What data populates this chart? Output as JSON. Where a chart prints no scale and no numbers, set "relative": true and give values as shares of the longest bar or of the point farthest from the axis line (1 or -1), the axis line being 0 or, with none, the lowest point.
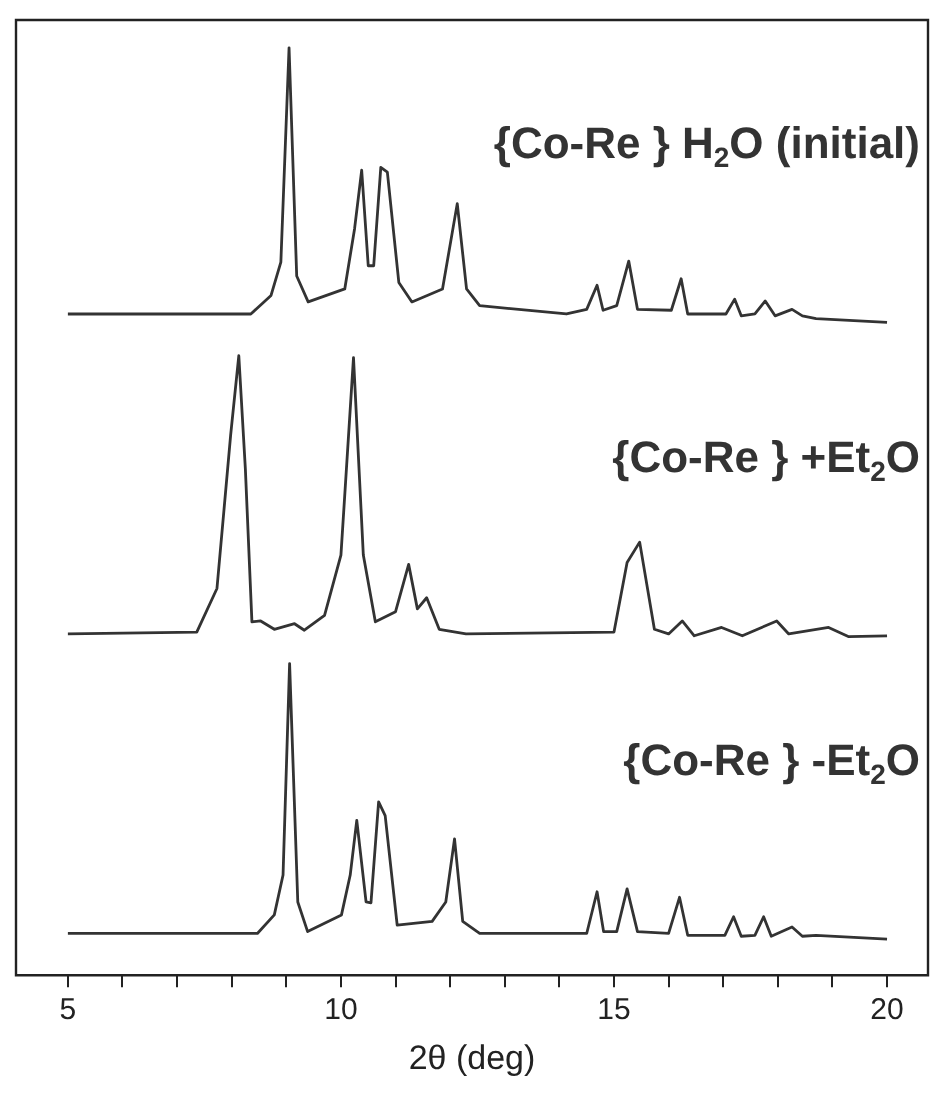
{
  "chart_data": {
    "type": "line",
    "relative": true,
    "xlabel": "2θ (deg)",
    "xlim": [
      4.05,
      20.75
    ],
    "xticks": [
      5,
      {
        "value": 6,
        "label": null
      },
      {
        "value": 7,
        "label": null
      },
      {
        "value": 8,
        "label": null
      },
      {
        "value": 9,
        "label": null
      },
      10,
      {
        "value": 11,
        "label": null
      },
      {
        "value": 12,
        "label": null
      },
      {
        "value": 13,
        "label": null
      },
      {
        "value": 14,
        "label": null
      },
      15,
      {
        "value": 16,
        "label": null
      },
      {
        "value": 17,
        "label": null
      },
      {
        "value": 18,
        "label": null
      },
      {
        "value": 19,
        "label": null
      },
      20
    ],
    "grid": false,
    "legend": false,
    "marker": "none",
    "line_style": "solid",
    "series": [
      {
        "name": "{Co-Re } H$_{2}$O (initial)",
        "color": "#333333",
        "x": [
          5,
          8.35,
          8.72,
          8.9,
          9.05,
          9.19,
          9.4,
          10.07,
          10.25,
          10.38,
          10.5,
          10.6,
          10.73,
          10.85,
          11.06,
          11.3,
          11.86,
          12.13,
          12.3,
          12.54,
          14.13,
          14.5,
          14.69,
          14.8,
          15.05,
          15.27,
          15.43,
          16.05,
          16.23,
          16.35,
          17.05,
          17.21,
          17.33,
          17.58,
          17.77,
          17.95,
          18.26,
          18.45,
          18.7,
          20
        ],
        "values": [
          0.713,
          0.713,
          0.733,
          0.769,
          1.0,
          0.754,
          0.726,
          0.74,
          0.805,
          0.868,
          0.765,
          0.765,
          0.871,
          0.866,
          0.747,
          0.726,
          0.74,
          0.832,
          0.74,
          0.722,
          0.713,
          0.718,
          0.744,
          0.717,
          0.722,
          0.77,
          0.718,
          0.717,
          0.751,
          0.713,
          0.713,
          0.729,
          0.711,
          0.713,
          0.727,
          0.711,
          0.718,
          0.711,
          0.708,
          0.704
        ]
      },
      {
        "name": "{Co-Re } +Et$_{2}$O",
        "color": "#333333",
        "x": [
          5,
          7.36,
          7.73,
          7.98,
          8.13,
          8.25,
          8.37,
          8.53,
          8.78,
          9.15,
          9.33,
          9.7,
          10.0,
          10.23,
          10.41,
          10.63,
          11.0,
          11.24,
          11.4,
          11.57,
          11.8,
          12.29,
          15.0,
          15.24,
          15.47,
          15.74,
          16.0,
          16.25,
          16.47,
          16.97,
          17.35,
          17.98,
          18.2,
          18.93,
          19.3,
          20
        ],
        "values": [
          0.368,
          0.37,
          0.417,
          0.582,
          0.668,
          0.546,
          0.381,
          0.382,
          0.373,
          0.379,
          0.372,
          0.388,
          0.453,
          0.666,
          0.453,
          0.381,
          0.392,
          0.443,
          0.395,
          0.407,
          0.373,
          0.368,
          0.37,
          0.445,
          0.467,
          0.373,
          0.368,
          0.382,
          0.366,
          0.375,
          0.366,
          0.382,
          0.368,
          0.375,
          0.365,
          0.366
        ]
      },
      {
        "name": "{Co-Re } -Et$_{2}$O",
        "color": "#333333",
        "x": [
          5,
          8.47,
          8.78,
          8.94,
          9.06,
          9.21,
          9.39,
          10.01,
          10.17,
          10.29,
          10.46,
          10.55,
          10.69,
          10.81,
          11.03,
          11.67,
          11.92,
          12.08,
          12.23,
          12.54,
          14.5,
          14.69,
          14.81,
          15.05,
          15.24,
          15.43,
          16.0,
          16.2,
          16.35,
          17.03,
          17.19,
          17.33,
          17.58,
          17.74,
          17.88,
          18.26,
          18.45,
          18.7,
          20
        ],
        "values": [
          0.045,
          0.045,
          0.065,
          0.108,
          0.336,
          0.079,
          0.047,
          0.065,
          0.108,
          0.167,
          0.079,
          0.078,
          0.187,
          0.172,
          0.054,
          0.058,
          0.079,
          0.147,
          0.058,
          0.045,
          0.045,
          0.09,
          0.047,
          0.047,
          0.093,
          0.047,
          0.045,
          0.084,
          0.043,
          0.043,
          0.063,
          0.042,
          0.043,
          0.063,
          0.042,
          0.052,
          0.042,
          0.043,
          0.039
        ]
      }
    ]
  }
}
